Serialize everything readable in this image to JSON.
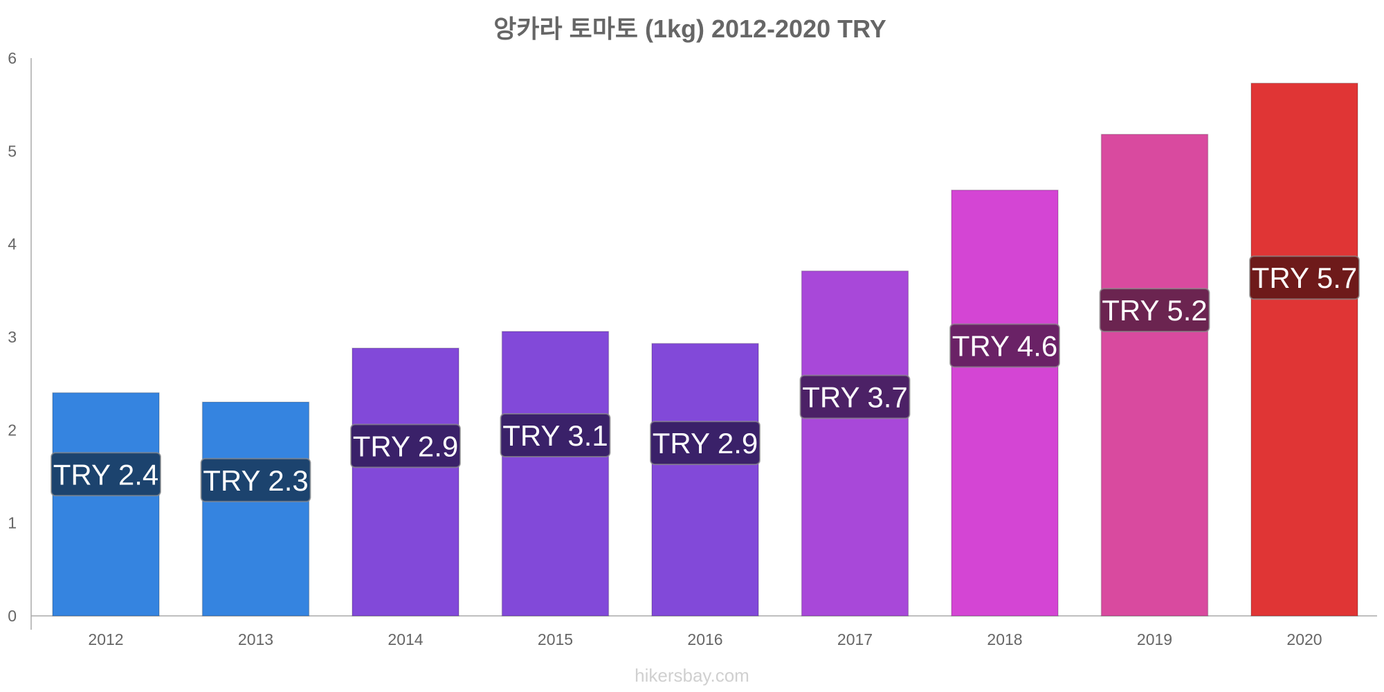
{
  "chart_data": {
    "type": "bar",
    "title": "앙카라 토마토 (1kg) 2012-2020 TRY",
    "xlabel": "",
    "ylabel": "",
    "categories": [
      "2012",
      "2013",
      "2014",
      "2015",
      "2016",
      "2017",
      "2018",
      "2019",
      "2020"
    ],
    "values": [
      2.4,
      2.3,
      2.88,
      3.06,
      2.93,
      3.71,
      4.58,
      5.18,
      5.73
    ],
    "value_labels": [
      "TRY 2.4",
      "TRY 2.3",
      "TRY 2.9",
      "TRY 3.1",
      "TRY 2.9",
      "TRY 3.7",
      "TRY 4.6",
      "TRY 5.2",
      "TRY 5.7"
    ],
    "bar_colors": [
      "#3584e0",
      "#3584e0",
      "#8249d9",
      "#8249d9",
      "#8249d9",
      "#a848d9",
      "#d445d4",
      "#d94a9f",
      "#e03535"
    ],
    "label_colors": [
      "#1c436e",
      "#1c436e",
      "#3a2169",
      "#3a2169",
      "#3a2169",
      "#4c2166",
      "#6a2266",
      "#6b2450",
      "#6e1a1a"
    ],
    "ylim": [
      0,
      6
    ],
    "yticks": [
      "0",
      "1",
      "2",
      "3",
      "4",
      "5",
      "6"
    ],
    "grid": false,
    "legend": "none"
  },
  "watermark": "hikersbay.com"
}
